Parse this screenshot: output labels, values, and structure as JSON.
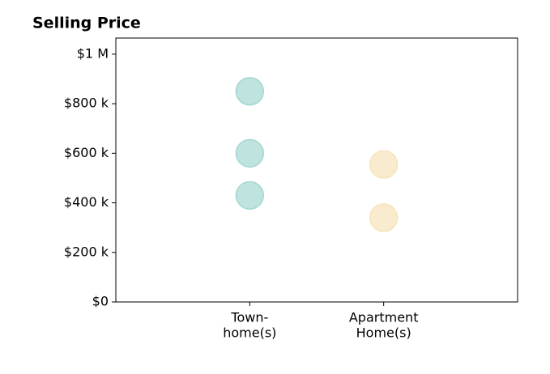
{
  "chart_data": {
    "type": "scatter",
    "title": "Selling Price",
    "xlim": [
      0,
      3
    ],
    "xticks": [
      {
        "value": 1,
        "label": [
          "Town-",
          "home(s)"
        ]
      },
      {
        "value": 2,
        "label": [
          "Apartment",
          "Home(s)"
        ]
      }
    ],
    "ylim": [
      0,
      1065000
    ],
    "yticks": [
      {
        "value": 0,
        "label": "$0"
      },
      {
        "value": 200000,
        "label": "$200 k"
      },
      {
        "value": 400000,
        "label": "$400 k"
      },
      {
        "value": 600000,
        "label": "$600 k"
      },
      {
        "value": 800000,
        "label": "$800 k"
      },
      {
        "value": 1000000,
        "label": "$1 M"
      }
    ],
    "series": [
      {
        "color": "#80c8c0",
        "x": [
          1,
          1,
          1
        ],
        "values": [
          850000,
          600000,
          430000
        ]
      },
      {
        "color": "#f3d89c",
        "x": [
          2,
          2
        ],
        "values": [
          555000,
          340000
        ]
      }
    ]
  }
}
